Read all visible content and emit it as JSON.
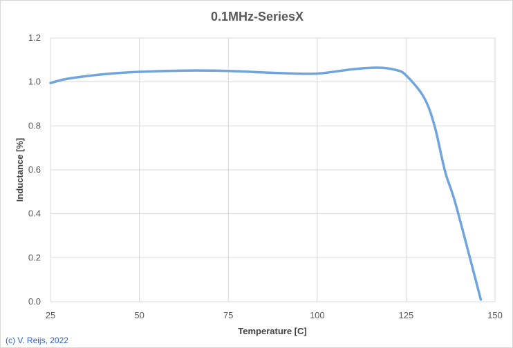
{
  "chart_data": {
    "type": "line",
    "title": "0.1MHz-SeriesX",
    "xlabel": "Temperature [C]",
    "ylabel": "Inductance [%]",
    "xlim": [
      25,
      150
    ],
    "ylim": [
      0,
      1.2
    ],
    "xticks": [
      "25",
      "50",
      "75",
      "100",
      "125",
      "150"
    ],
    "yticks": [
      "0.0",
      "0.2",
      "0.4",
      "0.6",
      "0.8",
      "1.0",
      "1.2"
    ],
    "grid": true,
    "smooth": true,
    "color": "#6FA5DC",
    "series": [
      {
        "x": [
          25,
          30,
          40,
          50,
          65,
          75,
          90,
          100,
          110,
          117,
          122,
          125,
          130,
          133,
          136,
          139,
          146
        ],
        "y": [
          0.995,
          1.015,
          1.035,
          1.046,
          1.052,
          1.05,
          1.04,
          1.038,
          1.058,
          1.065,
          1.055,
          1.03,
          0.93,
          0.8,
          0.59,
          0.44,
          0.01
        ]
      }
    ]
  },
  "credit": "(c) V. Reijs, 2022"
}
